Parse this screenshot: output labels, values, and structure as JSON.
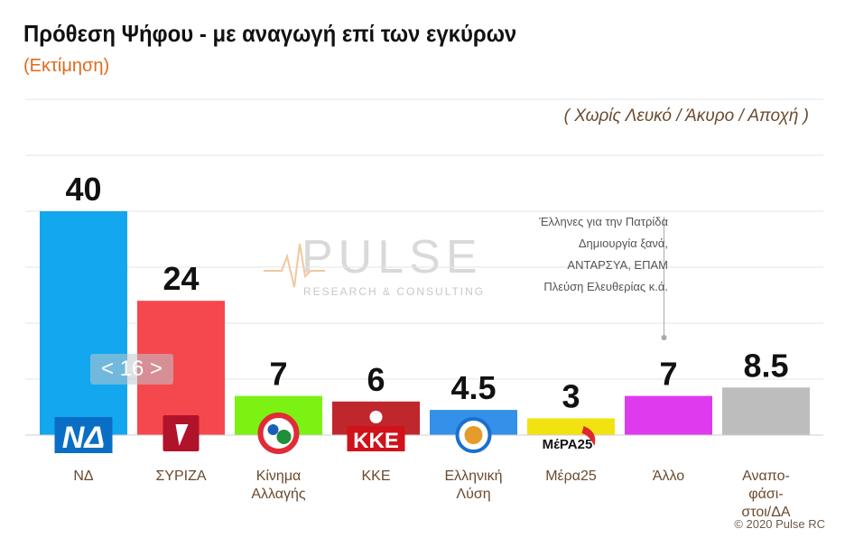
{
  "header": {
    "title": "Πρόθεση Ψήφου - με αναγωγή επί των εγκύρων",
    "subtitle": "(Εκτίμηση)",
    "note": "( Χωρίς Λευκό / Άκυρο / Αποχή )"
  },
  "watermark": {
    "main": "PULSE",
    "sub": "RESEARCH & CONSULTING"
  },
  "annotation_other": {
    "lines": [
      "Έλληνες για την Πατρίδα",
      "Δημιουργία ξανά,",
      "ΑΝΤΑΡΣΥΑ, ΕΠΑΜ",
      "Πλεύση Ελευθερίας κ.ά."
    ]
  },
  "gap_badge": "< 16 >",
  "copyright": "© 2020 Pulse RC",
  "chart_data": {
    "type": "bar",
    "categories": [
      "ΝΔ",
      "ΣΥΡΙΖΑ",
      "Κίνημα Αλλαγής",
      "ΚΚΕ",
      "Ελληνική Λύση",
      "Μέρα25",
      "Άλλο",
      "Αναπο-φάσι-στοι/ΔΑ"
    ],
    "category_lines": [
      [
        "ΝΔ"
      ],
      [
        "ΣΥΡΙΖΑ"
      ],
      [
        "Κίνημα",
        "Αλλαγής"
      ],
      [
        "ΚΚΕ"
      ],
      [
        "Ελληνική",
        "Λύση"
      ],
      [
        "Μέρα25"
      ],
      [
        "Άλλο"
      ],
      [
        "Αναπο-",
        "φάσι-",
        "στοι/ΔΑ"
      ]
    ],
    "values": [
      40,
      24,
      7,
      6,
      4.5,
      3,
      7,
      8.5
    ],
    "value_labels": [
      "40",
      "24",
      "7",
      "6",
      "4.5",
      "3",
      "7",
      "8.5"
    ],
    "colors": [
      "#12a7ee",
      "#f5484e",
      "#7cf212",
      "#c0272d",
      "#3490e8",
      "#f2e310",
      "#df3bee",
      "#bdbdbd"
    ],
    "logos": [
      "ΝΔ",
      "",
      "",
      "ΚΚΕ",
      "",
      "ΜέΡΑ25",
      "",
      ""
    ],
    "ylim": [
      0,
      50
    ],
    "grid": true
  }
}
